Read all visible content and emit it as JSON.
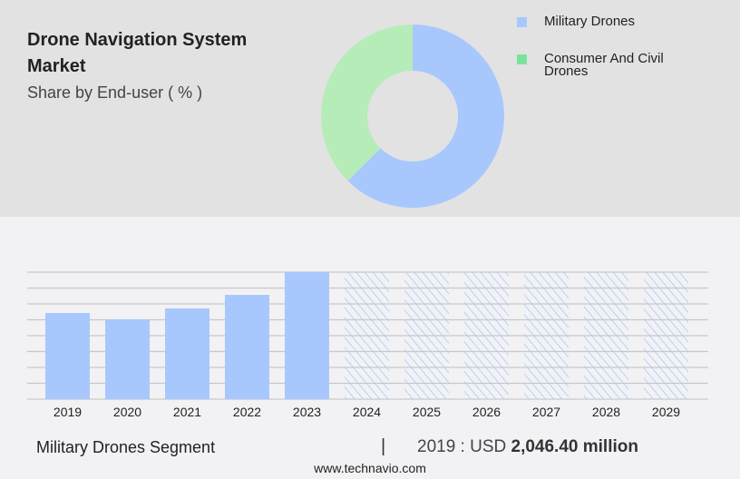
{
  "header": {
    "title": "Drone Navigation System Market",
    "subtitle": "Share by End-user ( % )"
  },
  "chart_data": [
    {
      "type": "pie",
      "variant": "donut",
      "legend_position": "right",
      "labels": [
        "Military Drones",
        "Consumer And Civil Drones"
      ],
      "values": [
        62.5,
        37.5
      ],
      "colors": [
        "#a8c8fd",
        "#b6ecb8"
      ],
      "legend_colors": [
        "#a8c8fd",
        "#7ae39a"
      ]
    },
    {
      "type": "bar",
      "categories": [
        "2019",
        "2020",
        "2021",
        "2022",
        "2023",
        "2024",
        "2025",
        "2026",
        "2027",
        "2028",
        "2029"
      ],
      "values": [
        2046.4,
        1896,
        2154,
        2477,
        3016,
        null,
        null,
        null,
        null,
        null,
        null
      ],
      "forecast": [
        false,
        false,
        false,
        false,
        false,
        true,
        true,
        true,
        true,
        true,
        true
      ],
      "ylim": [
        0,
        3016
      ],
      "grid": true,
      "color": "#a8c8fd"
    }
  ],
  "footer": {
    "segment": "Military Drones Segment",
    "separator": "|",
    "year_label": "2019 : USD",
    "value": "2,046.40 million",
    "site": "www.technavio.com"
  }
}
